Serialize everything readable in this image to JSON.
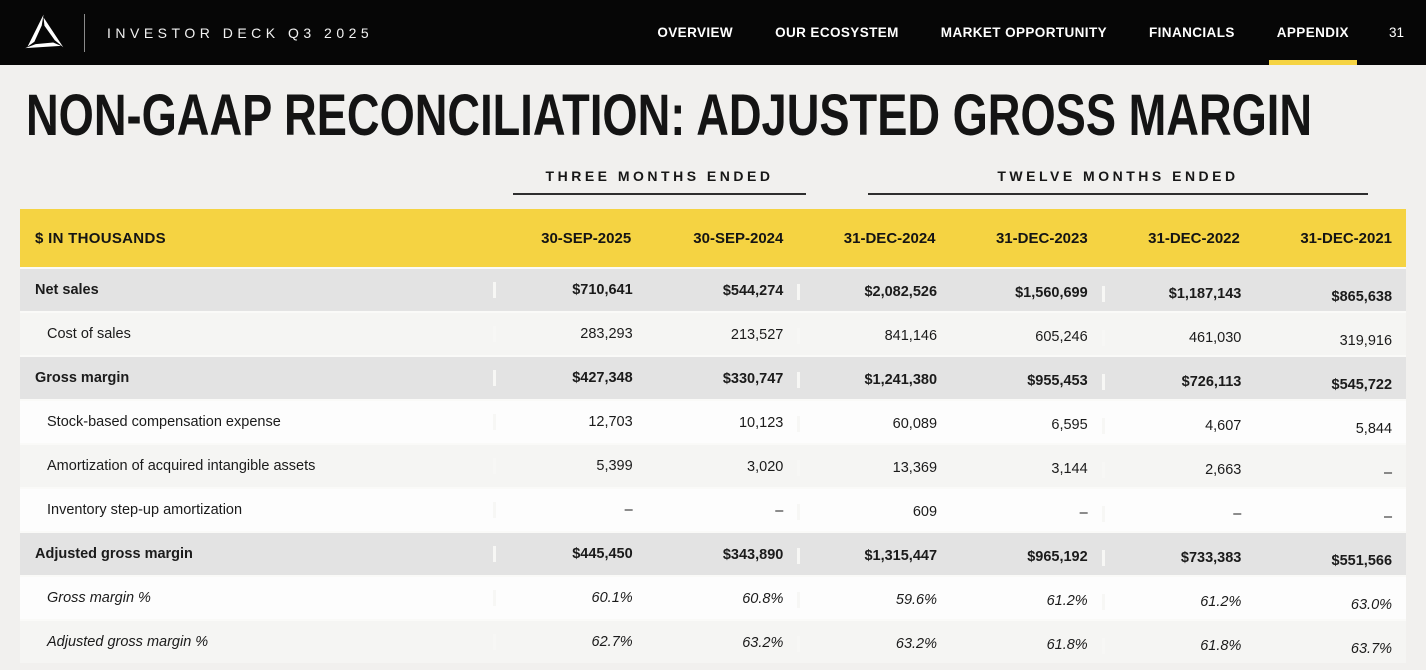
{
  "nav": {
    "brand": "INVESTOR DECK Q3 2025",
    "items": [
      {
        "label": "OVERVIEW",
        "active": false
      },
      {
        "label": "OUR ECOSYSTEM",
        "active": false
      },
      {
        "label": "MARKET OPPORTUNITY",
        "active": false
      },
      {
        "label": "FINANCIALS",
        "active": false
      },
      {
        "label": "APPENDIX",
        "active": true
      }
    ],
    "page_number": "31"
  },
  "page": {
    "title": "NON-GAAP RECONCILIATION: ADJUSTED GROSS MARGIN"
  },
  "table": {
    "group_headers": [
      {
        "label": "THREE MONTHS ENDED",
        "columns_spanned": 2
      },
      {
        "label": "TWELVE MONTHS ENDED",
        "columns_spanned": 4
      }
    ],
    "unit_label": "$ IN THOUSANDS",
    "columns": [
      "30-SEP-2025",
      "30-SEP-2024",
      "31-DEC-2024",
      "31-DEC-2023",
      "31-DEC-2022",
      "31-DEC-2021"
    ],
    "rows": [
      {
        "label": "Net sales",
        "style": "total",
        "values": [
          "$710,641",
          "$544,274",
          "$2,082,526",
          "$1,560,699",
          "$1,187,143",
          "$865,638"
        ]
      },
      {
        "label": "Cost of sales",
        "style": "item-shaded",
        "values": [
          "283,293",
          "213,527",
          "841,146",
          "605,246",
          "461,030",
          "319,916"
        ]
      },
      {
        "label": "Gross margin",
        "style": "total",
        "values": [
          "$427,348",
          "$330,747",
          "$1,241,380",
          "$955,453",
          "$726,113",
          "$545,722"
        ]
      },
      {
        "label": "Stock-based compensation expense",
        "style": "item",
        "values": [
          "12,703",
          "10,123",
          "60,089",
          "6,595",
          "4,607",
          "5,844"
        ]
      },
      {
        "label": "Amortization of acquired intangible assets",
        "style": "item-shaded",
        "values": [
          "5,399",
          "3,020",
          "13,369",
          "3,144",
          "2,663",
          "–"
        ]
      },
      {
        "label": "Inventory step-up amortization",
        "style": "item",
        "values": [
          "–",
          "–",
          "609",
          "–",
          "–",
          "–"
        ]
      },
      {
        "label": "Adjusted gross margin",
        "style": "total",
        "values": [
          "$445,450",
          "$343,890",
          "$1,315,447",
          "$965,192",
          "$733,383",
          "$551,566"
        ]
      },
      {
        "label": "Gross margin %",
        "style": "pct",
        "values": [
          "60.1%",
          "60.8%",
          "59.6%",
          "61.2%",
          "61.2%",
          "63.0%"
        ]
      },
      {
        "label": "Adjusted gross margin %",
        "style": "pct-shaded",
        "values": [
          "62.7%",
          "63.2%",
          "63.2%",
          "61.8%",
          "61.8%",
          "63.7%"
        ]
      }
    ]
  },
  "colors": {
    "accent_yellow": "#F5D342",
    "nav_background": "#060606",
    "total_row_gray": "#E3E3E3",
    "page_background": "#F1F0EE"
  }
}
